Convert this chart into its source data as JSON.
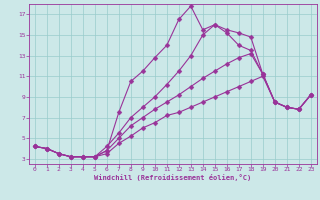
{
  "xlabel": "Windchill (Refroidissement éolien,°C)",
  "bg_color": "#cce8e8",
  "line_color": "#993399",
  "grid_color": "#99cccc",
  "xlim": [
    -0.5,
    23.5
  ],
  "ylim": [
    2.5,
    18.0
  ],
  "xticks": [
    0,
    1,
    2,
    3,
    4,
    5,
    6,
    7,
    8,
    9,
    10,
    11,
    12,
    13,
    14,
    15,
    16,
    17,
    18,
    19,
    20,
    21,
    22,
    23
  ],
  "yticks": [
    3,
    5,
    7,
    9,
    11,
    13,
    15,
    17
  ],
  "series": [
    [
      4.2,
      4.0,
      3.5,
      3.2,
      3.2,
      3.2,
      3.5,
      4.5,
      5.2,
      6.0,
      6.5,
      7.2,
      7.5,
      8.0,
      8.5,
      9.0,
      9.5,
      10.0,
      10.5,
      11.0,
      8.5,
      8.0,
      7.8,
      9.2
    ],
    [
      4.2,
      4.0,
      3.5,
      3.2,
      3.2,
      3.2,
      3.8,
      5.0,
      6.2,
      7.0,
      7.8,
      8.5,
      9.2,
      10.0,
      10.8,
      11.5,
      12.2,
      12.8,
      13.2,
      11.2,
      8.5,
      8.0,
      7.8,
      9.2
    ],
    [
      4.2,
      4.0,
      3.5,
      3.2,
      3.2,
      3.2,
      4.2,
      5.5,
      7.0,
      8.0,
      9.0,
      10.2,
      11.5,
      13.0,
      15.0,
      16.0,
      15.5,
      15.2,
      14.8,
      11.2,
      8.5,
      8.0,
      7.8,
      9.2
    ],
    [
      4.2,
      4.0,
      3.5,
      3.2,
      3.2,
      3.2,
      3.8,
      7.5,
      10.5,
      11.5,
      12.8,
      14.0,
      16.5,
      17.8,
      15.5,
      16.0,
      15.2,
      14.0,
      13.5,
      11.2,
      8.5,
      8.0,
      7.8,
      9.2
    ]
  ]
}
